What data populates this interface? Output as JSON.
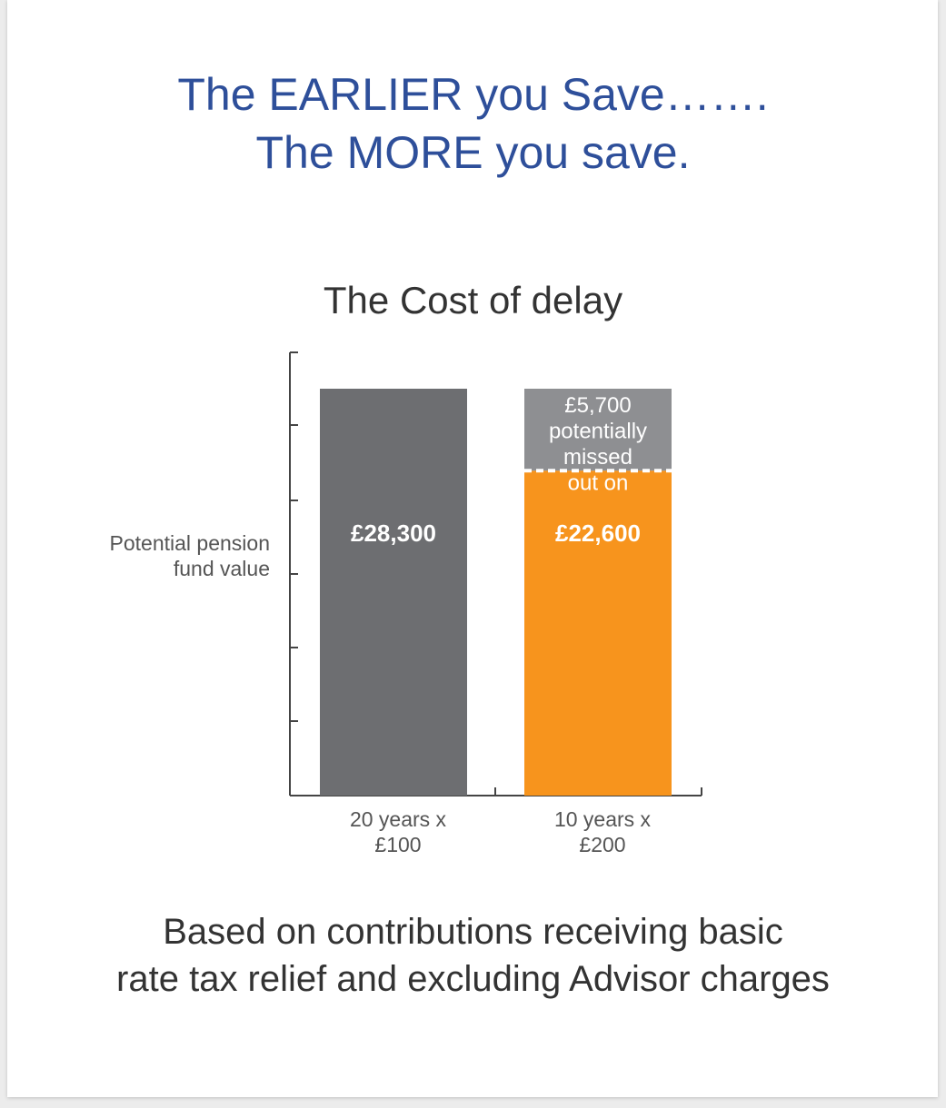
{
  "headline": {
    "line1": "The EARLIER you Save…….",
    "line2": "The MORE you save."
  },
  "chart_data": {
    "type": "bar",
    "title": "The Cost of delay",
    "ylabel_lines": [
      "Potential pension",
      "fund value"
    ],
    "xlabel": "",
    "categories": [
      [
        "20 years x",
        "£100"
      ],
      [
        "10 years x",
        "£200"
      ]
    ],
    "series": [
      {
        "name": "",
        "values": [
          28300,
          22600
        ],
        "labels": [
          "£28,300",
          "£22,600"
        ]
      },
      {
        "name": "",
        "values": [
          0,
          5700
        ],
        "labels": [
          "",
          "£5,700 potentially missed out on"
        ],
        "label_lines": [
          "£5,700",
          "potentially",
          "missed",
          "out on"
        ]
      }
    ],
    "stacked": true,
    "ylim": [
      0,
      32000
    ],
    "grid": false,
    "colors": {
      "bar_20yr": "#6d6e71",
      "bar_10yr_base": "#f7941d",
      "bar_10yr_missed": "#8e8f92",
      "axis": "#444444",
      "divider": "#ffffff"
    }
  },
  "footnote": {
    "line1": "Based on contributions receiving basic",
    "line2": "rate tax relief and excluding Advisor charges"
  }
}
